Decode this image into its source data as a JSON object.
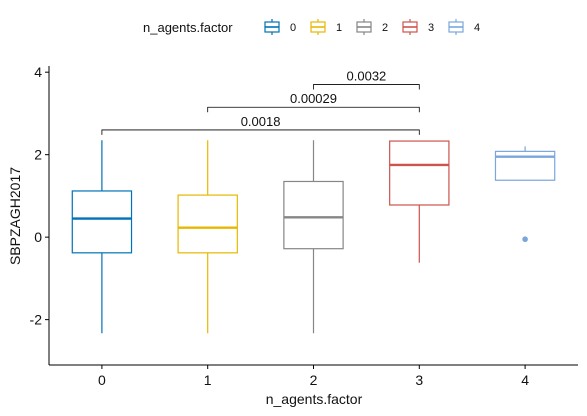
{
  "chart_data": {
    "type": "box",
    "xlabel": "n_agents.factor",
    "ylabel": "SBPZAGH2017",
    "ylim": [
      -3.1,
      4.15
    ],
    "yticks": [
      -2,
      0,
      2,
      4
    ],
    "ytick_labels": [
      "-2",
      "0",
      "2",
      "4"
    ],
    "grid": false,
    "legend": {
      "title": "n_agents.factor",
      "position": "top",
      "entries": [
        {
          "label": "0",
          "color": "#0072B5"
        },
        {
          "label": "1",
          "color": "#E7B800"
        },
        {
          "label": "2",
          "color": "#868686"
        },
        {
          "label": "3",
          "color": "#CD534C"
        },
        {
          "label": "4",
          "color": "#7AA6DC"
        }
      ]
    },
    "categories": [
      "0",
      "1",
      "2",
      "3",
      "4"
    ],
    "boxes": [
      {
        "category": "0",
        "whisker_low": -2.33,
        "q1": -0.38,
        "median": 0.45,
        "q3": 1.12,
        "whisker_high": 2.35,
        "outliers": []
      },
      {
        "category": "1",
        "whisker_low": -2.33,
        "q1": -0.38,
        "median": 0.23,
        "q3": 1.02,
        "whisker_high": 2.35,
        "outliers": []
      },
      {
        "category": "2",
        "whisker_low": -2.33,
        "q1": -0.28,
        "median": 0.48,
        "q3": 1.35,
        "whisker_high": 2.35,
        "outliers": []
      },
      {
        "category": "3",
        "whisker_low": -0.62,
        "q1": 0.78,
        "median": 1.75,
        "q3": 2.33,
        "whisker_high": 2.33,
        "outliers": []
      },
      {
        "category": "4",
        "whisker_low": 1.38,
        "q1": 1.38,
        "median": 1.95,
        "q3": 2.08,
        "whisker_high": 2.2,
        "outliers": [
          -0.05
        ]
      }
    ],
    "comparisons": [
      {
        "group1": "0",
        "group2": "3",
        "label": "0.0018",
        "y": 2.6
      },
      {
        "group1": "1",
        "group2": "3",
        "label": "0.00029",
        "y": 3.15
      },
      {
        "group1": "2",
        "group2": "3",
        "label": "0.0032",
        "y": 3.7
      }
    ]
  }
}
